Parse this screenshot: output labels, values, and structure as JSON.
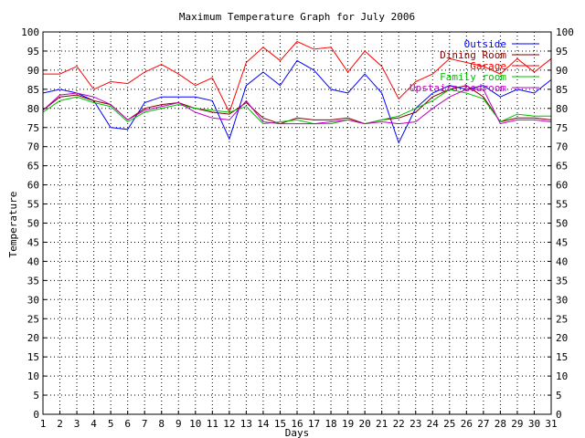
{
  "chart_data": {
    "type": "line",
    "title": "Maximum Temperature Graph for July 2006",
    "xlabel": "Days",
    "ylabel": "Temperature",
    "xlim": [
      1,
      31
    ],
    "ylim": [
      0,
      100
    ],
    "xticks": [
      1,
      2,
      3,
      4,
      5,
      6,
      7,
      8,
      9,
      10,
      11,
      12,
      13,
      14,
      15,
      16,
      17,
      18,
      19,
      20,
      21,
      22,
      23,
      24,
      25,
      26,
      27,
      28,
      29,
      30,
      31
    ],
    "yticks": [
      0,
      5,
      10,
      15,
      20,
      25,
      30,
      35,
      40,
      45,
      50,
      55,
      60,
      65,
      70,
      75,
      80,
      85,
      90,
      95,
      100
    ],
    "grid": true,
    "legend_position": "top-right",
    "x": [
      1,
      2,
      3,
      4,
      5,
      6,
      7,
      8,
      9,
      10,
      11,
      12,
      13,
      14,
      15,
      16,
      17,
      18,
      19,
      20,
      21,
      22,
      23,
      24,
      25,
      26,
      27,
      28,
      29,
      30,
      31
    ],
    "series": [
      {
        "name": "Outside",
        "color": "#0000ff",
        "values": [
          84,
          85,
          84,
          82,
          75,
          74.5,
          81.5,
          83,
          83,
          83,
          82,
          72,
          86,
          89.5,
          86,
          92.5,
          90,
          85,
          84,
          89,
          84,
          71,
          80,
          84,
          86,
          85,
          86,
          83,
          85,
          84,
          87.5
        ]
      },
      {
        "name": "Dining Room",
        "color": "#800000",
        "values": [
          79.5,
          83,
          83.5,
          82,
          81,
          77,
          80,
          81,
          81.5,
          80,
          79,
          78.5,
          81.5,
          77.5,
          76,
          77.5,
          77,
          77,
          77.5,
          76,
          77,
          77.5,
          79,
          83,
          85,
          86,
          83,
          76.5,
          77.5,
          77.5,
          77
        ]
      },
      {
        "name": "Garage",
        "color": "#ff0000",
        "values": [
          89,
          89,
          91,
          85,
          87,
          86.5,
          89.5,
          91.5,
          89,
          86,
          88,
          79,
          92,
          96,
          92.5,
          97.5,
          95.5,
          96,
          89.5,
          95,
          91,
          82.5,
          87,
          89,
          93,
          92,
          91,
          89,
          93,
          89.5,
          93
        ]
      },
      {
        "name": "Family room",
        "color": "#00c000",
        "values": [
          79,
          82,
          83,
          81.5,
          80.5,
          76.5,
          79,
          80,
          81,
          80,
          79.5,
          79,
          80.5,
          76,
          76.5,
          77,
          76,
          76,
          77,
          76,
          77,
          78,
          80,
          82,
          85,
          84,
          82.5,
          76.5,
          78.5,
          78,
          78
        ]
      },
      {
        "name": "Upstairs bedroom",
        "color": "#c000c0",
        "values": [
          79.5,
          83.5,
          84,
          83,
          81,
          77,
          79.5,
          80.5,
          81.5,
          79,
          77.5,
          77,
          82,
          76.5,
          76,
          76,
          76,
          76.5,
          77,
          76,
          76.5,
          76,
          76.5,
          80,
          83,
          85,
          85,
          76,
          77,
          77,
          76.5
        ]
      }
    ]
  }
}
